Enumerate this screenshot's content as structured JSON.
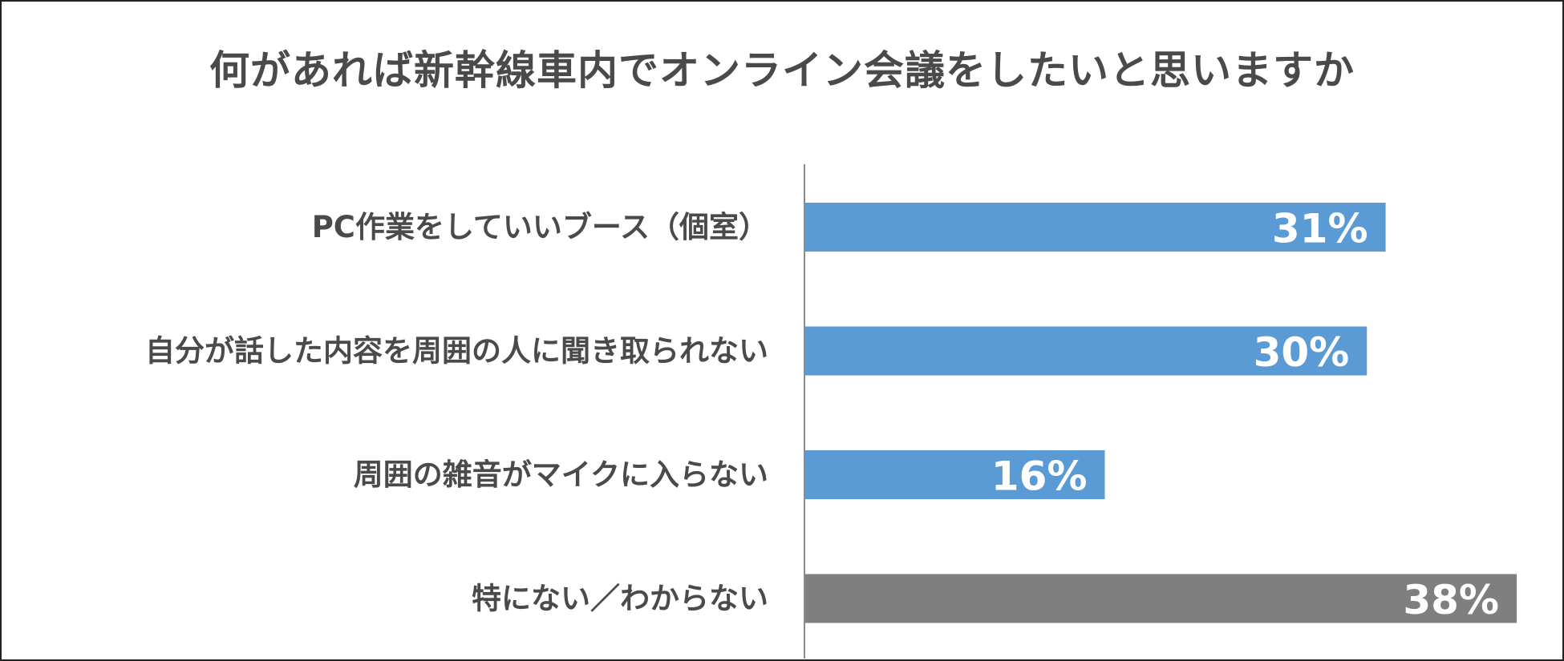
{
  "chart_data": {
    "type": "bar",
    "orientation": "horizontal",
    "title": "何があれば新幹線車内でオンライン会議をしたいと思いますか",
    "categories": [
      "PC作業をしていいブース（個室）",
      "自分が話した内容を周囲の人に聞き取られない",
      "周囲の雑音がマイクに入らない",
      "特にない／わからない"
    ],
    "values": [
      31,
      30,
      16,
      38
    ],
    "value_labels": [
      "31%",
      "30%",
      "16%",
      "38%"
    ],
    "bar_colors": [
      "#5b9bd5",
      "#5b9bd5",
      "#5b9bd5",
      "#7f7f7f"
    ],
    "xlim": [
      0,
      38
    ],
    "grid": false,
    "legend": "none"
  }
}
